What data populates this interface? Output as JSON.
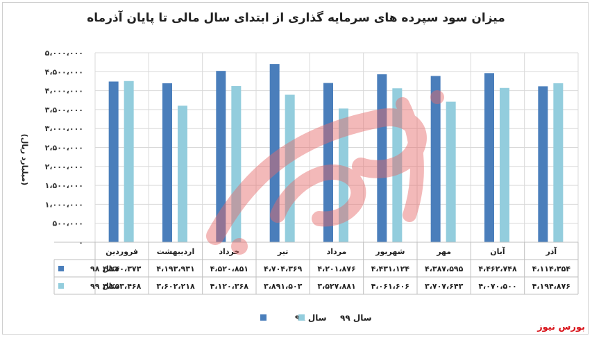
{
  "title": "میزان سود سپرده های سرمایه گذاری از ابتدای سال مالی تا پایان آذرماه",
  "brand_label": "بورس نیوز",
  "watermark_text": "بورس نیوز",
  "chart_data": {
    "type": "bar",
    "title": "میزان سود سپرده های سرمایه گذاری از ابتدای سال مالی تا پایان آذرماه",
    "ylabel": "(میلیارد ریال)",
    "xlabel": "",
    "ylim": [
      0,
      5000000
    ],
    "y_ticks": [
      "۰",
      "۵۰۰،۰۰۰",
      "۱،۰۰۰،۰۰۰",
      "۱،۵۰۰،۰۰۰",
      "۲،۰۰۰،۰۰۰",
      "۲،۵۰۰،۰۰۰",
      "۳،۰۰۰،۰۰۰",
      "۳،۵۰۰،۰۰۰",
      "۴،۰۰۰،۰۰۰",
      "۴،۵۰۰،۰۰۰",
      "۵،۰۰۰،۰۰۰"
    ],
    "y_tick_values": [
      0,
      500000,
      1000000,
      1500000,
      2000000,
      2500000,
      3000000,
      3500000,
      4000000,
      4500000,
      5000000
    ],
    "categories": [
      "فروردین",
      "اردیبهشت",
      "خرداد",
      "تیر",
      "مرداد",
      "شهریور",
      "مهر",
      "آبان",
      "آذر"
    ],
    "grid": true,
    "legend_position": "bottom",
    "series": [
      {
        "name": "سال ۹۸",
        "color": "#4a7ebb",
        "values": [
          4240373,
          4193931,
          4520851,
          4704369,
          4201876,
          4431124,
          4387595,
          4462748,
          4114354
        ],
        "labels": [
          "۴،۲۴۰،۳۷۳",
          "۴،۱۹۳،۹۳۱",
          "۴،۵۲۰،۸۵۱",
          "۴،۷۰۴،۳۶۹",
          "۴،۲۰۱،۸۷۶",
          "۴،۴۳۱،۱۲۴",
          "۴،۳۸۷،۵۹۵",
          "۴،۴۶۲،۷۴۸",
          "۴،۱۱۴،۳۵۴"
        ]
      },
      {
        "name": "سال ۹۹",
        "color": "#93cddd",
        "values": [
          4253468,
          3602218,
          4120368,
          3891503,
          3527881,
          4061606,
          3707643,
          4070500,
          4194876
        ],
        "labels": [
          "۴،۲۵۳،۴۶۸",
          "۳،۶۰۲،۲۱۸",
          "۴،۱۲۰،۳۶۸",
          "۳،۸۹۱،۵۰۳",
          "۳،۵۲۷،۸۸۱",
          "۴،۰۶۱،۶۰۶",
          "۳،۷۰۷،۶۴۳",
          "۴،۰۷۰،۵۰۰",
          "۴،۱۹۴،۸۷۶"
        ]
      }
    ]
  }
}
